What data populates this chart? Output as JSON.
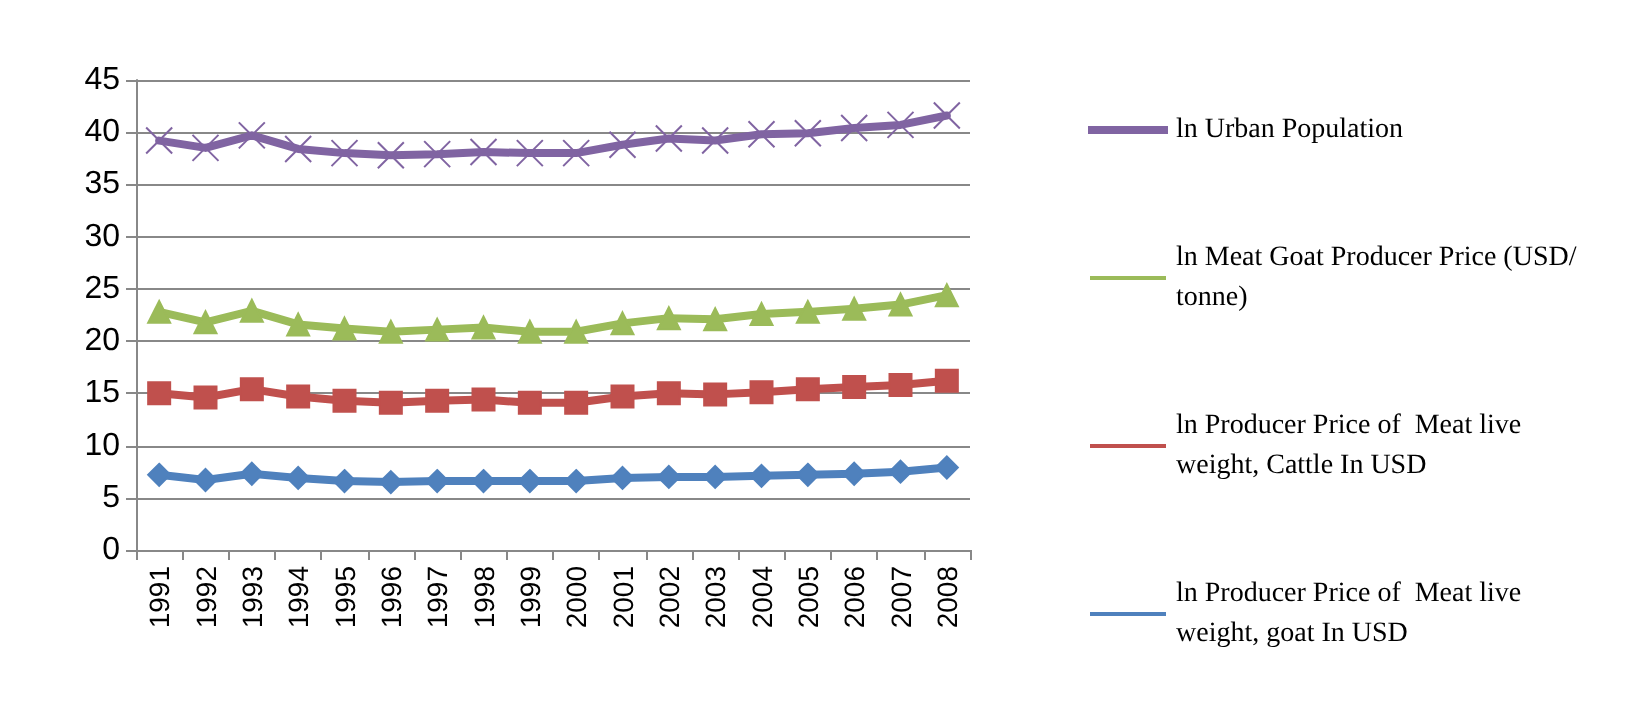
{
  "chart_data": {
    "type": "line",
    "categories": [
      "1991",
      "1992",
      "1993",
      "1994",
      "1995",
      "1996",
      "1997",
      "1998",
      "1999",
      "2000",
      "2001",
      "2002",
      "2003",
      "2004",
      "2005",
      "2006",
      "2007",
      "2008"
    ],
    "series": [
      {
        "name": "ln Urban Population",
        "color": "#8064a2",
        "marker": "cross",
        "values": [
          39.2,
          38.5,
          39.7,
          38.4,
          38.0,
          37.8,
          37.9,
          38.1,
          38.0,
          38.0,
          38.8,
          39.4,
          39.2,
          39.8,
          39.9,
          40.4,
          40.7,
          41.6
        ]
      },
      {
        "name": "ln Meat Goat Producer Price (USD/tonne)",
        "color": "#9bbb59",
        "marker": "triangle",
        "values": [
          22.8,
          21.8,
          22.9,
          21.6,
          21.2,
          20.9,
          21.1,
          21.3,
          20.9,
          20.9,
          21.7,
          22.2,
          22.1,
          22.6,
          22.8,
          23.1,
          23.5,
          24.4
        ]
      },
      {
        "name": "ln Producer Price of  Meat live weight, Cattle In USD",
        "color": "#c0504d",
        "marker": "square",
        "values": [
          15.0,
          14.6,
          15.4,
          14.7,
          14.3,
          14.1,
          14.3,
          14.4,
          14.1,
          14.1,
          14.7,
          15.0,
          14.9,
          15.1,
          15.4,
          15.6,
          15.8,
          16.2
        ]
      },
      {
        "name": "ln Producer Price of  Meat live weight, goat In USD",
        "color": "#4f81bd",
        "marker": "diamond",
        "values": [
          7.2,
          6.7,
          7.3,
          6.9,
          6.6,
          6.5,
          6.6,
          6.6,
          6.6,
          6.6,
          6.9,
          7.0,
          7.0,
          7.1,
          7.2,
          7.3,
          7.5,
          7.9
        ]
      }
    ],
    "ylim": [
      0,
      45
    ],
    "yticks": [
      0,
      5,
      10,
      15,
      20,
      25,
      30,
      35,
      40,
      45
    ],
    "grid": "y",
    "legend": "right"
  }
}
